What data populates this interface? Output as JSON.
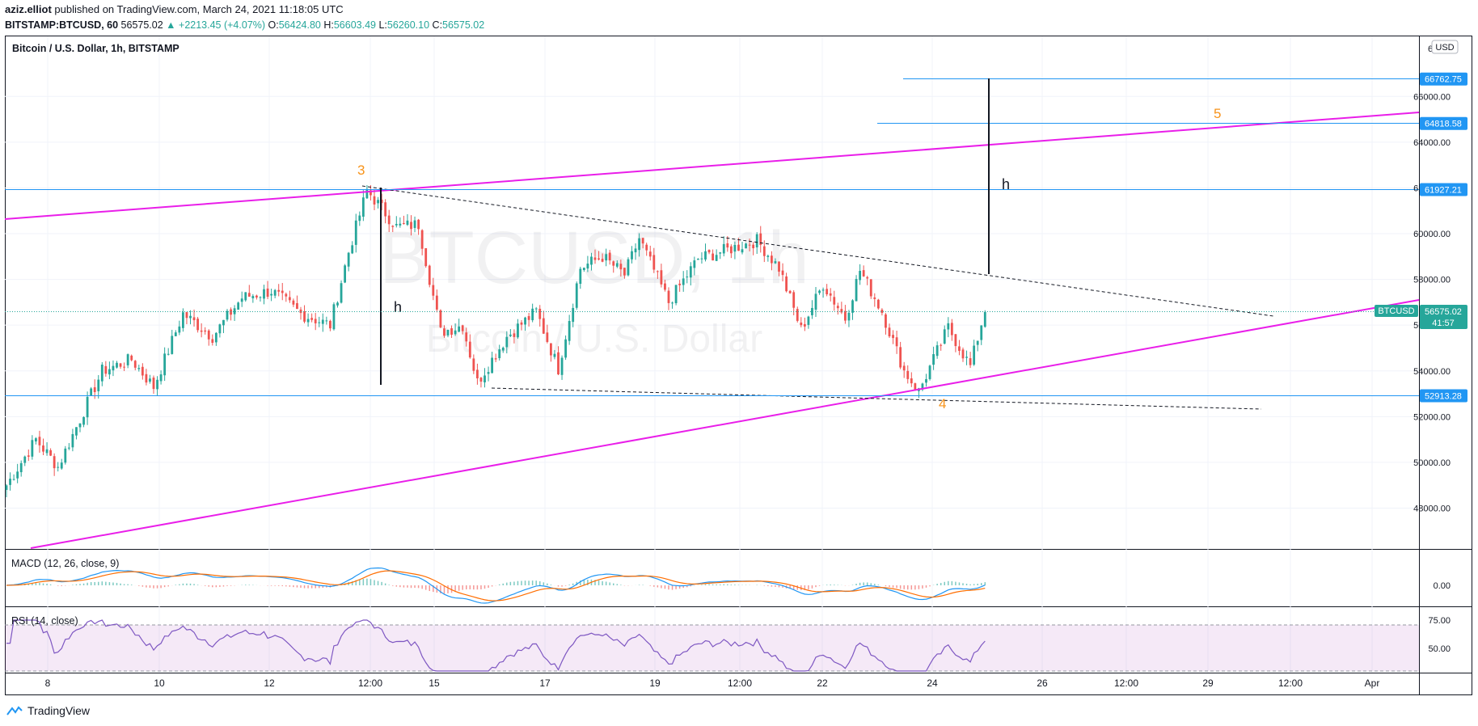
{
  "header": {
    "publisher": "aziz.elliot",
    "published_text": "published on TradingView.com, March 24, 2021 11:18:05 UTC",
    "symbol": "BITSTAMP:BTCUSD, 60",
    "last": "56575.02",
    "change": "▲ +2213.45 (+4.07%)",
    "o_label": "O:",
    "o": "56424.80",
    "h_label": "H:",
    "h": "56603.49",
    "l_label": "L:",
    "l": "56260.10",
    "c_label": "C:",
    "c": "56575.02"
  },
  "chart_title": "Bitcoin / U.S. Dollar, 1h, BITSTAMP",
  "watermark": {
    "main": "BTCUSD, 1h",
    "sub": "Bitcoin / U.S. Dollar"
  },
  "currency_badge": "USD",
  "price_axis": {
    "ticks": [
      "66000.00",
      "64000.00",
      "62000.00",
      "60000.00",
      "58000.00",
      "56000.00",
      "54000.00",
      "52000.00",
      "50000.00",
      "48000.00"
    ],
    "top_partial": "6"
  },
  "price_labels": [
    {
      "value": "66762.75",
      "color": "#2196f3"
    },
    {
      "value": "64818.58",
      "color": "#2196f3"
    },
    {
      "value": "61927.21",
      "color": "#2196f3"
    },
    {
      "value": "52913.28",
      "color": "#2196f3"
    }
  ],
  "last_price": {
    "symbol": "BTCUSD",
    "value": "56575.02",
    "countdown": "41:57",
    "color": "#26a69a"
  },
  "annotations": {
    "wave3": "3",
    "wave4": "4",
    "wave5": "5",
    "h": "h",
    "color": "#f7931a"
  },
  "x_axis": {
    "labels": [
      "8",
      "10",
      "12",
      "12:00",
      "15",
      "17",
      "19",
      "12:00",
      "22",
      "24",
      "26",
      "12:00",
      "29",
      "12:00",
      "Apr"
    ]
  },
  "macd": {
    "title": "MACD (12, 26, close, 9)",
    "tick": "0.00"
  },
  "rsi": {
    "title": "RSI (14, close)",
    "ticks": [
      "75.00",
      "50.00"
    ]
  },
  "footer": {
    "brand": "TradingView"
  },
  "chart_data": {
    "type": "candlestick",
    "title": "Bitcoin / U.S. Dollar, 1h, BITSTAMP",
    "ylim": [
      46000,
      67500
    ],
    "horizontal_levels": [
      66762.75,
      64818.58,
      61927.21,
      52913.28
    ],
    "last_close": 56575.02,
    "waypoints": [
      [
        0,
        49000
      ],
      [
        8,
        51000
      ],
      [
        14,
        49800
      ],
      [
        26,
        54000
      ],
      [
        34,
        54500
      ],
      [
        40,
        53300
      ],
      [
        48,
        56500
      ],
      [
        56,
        55500
      ],
      [
        64,
        57200
      ],
      [
        72,
        57500
      ],
      [
        80,
        56500
      ],
      [
        88,
        56000
      ],
      [
        93,
        59200
      ],
      [
        98,
        61900
      ],
      [
        106,
        60300
      ],
      [
        112,
        60400
      ],
      [
        118,
        55700
      ],
      [
        124,
        56000
      ],
      [
        128,
        53500
      ],
      [
        136,
        55500
      ],
      [
        144,
        56600
      ],
      [
        150,
        54100
      ],
      [
        156,
        58500
      ],
      [
        162,
        59000
      ],
      [
        168,
        58200
      ],
      [
        172,
        59800
      ],
      [
        180,
        57000
      ],
      [
        188,
        58900
      ],
      [
        196,
        59300
      ],
      [
        204,
        59700
      ],
      [
        210,
        58500
      ],
      [
        216,
        55800
      ],
      [
        222,
        57800
      ],
      [
        228,
        56300
      ],
      [
        232,
        58400
      ],
      [
        238,
        56600
      ],
      [
        244,
        54000
      ],
      [
        248,
        53100
      ],
      [
        256,
        55900
      ],
      [
        262,
        54200
      ],
      [
        266,
        56700
      ]
    ],
    "macd_range": [
      -1,
      1
    ],
    "rsi_range": [
      30,
      85
    ],
    "rsi_bands": [
      70,
      30
    ]
  }
}
